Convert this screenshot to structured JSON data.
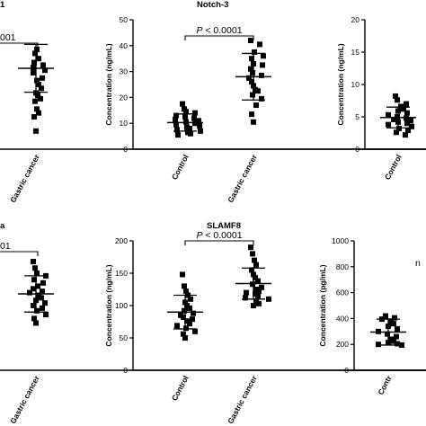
{
  "chart_data": [
    {
      "type": "scatter",
      "title": "",
      "title_prefix": "1",
      "xlabel": "",
      "ylabel": "",
      "categories": [
        "",
        "Gastric cancer"
      ],
      "annotation": "001",
      "ylim": [
        0,
        20
      ],
      "yticks": [],
      "series": [
        {
          "category": "Gastric cancer",
          "mean": 12.5,
          "sd": 3.7,
          "values": [
            12.6,
            14.8,
            15.4,
            14.0,
            13.4,
            13.0,
            12.2,
            11.8,
            11.0,
            10.6,
            10.0,
            9.4,
            8.7,
            8.3,
            7.8,
            7.4,
            6.2,
            5.6,
            5.0,
            2.8
          ]
        }
      ]
    },
    {
      "type": "scatter",
      "title": "Notch-3",
      "xlabel": "",
      "ylabel": "Concentration (ng/mL)",
      "categories": [
        "Control",
        "Gastric cancer"
      ],
      "annotation": "P < 0.0001",
      "ylim": [
        0,
        50
      ],
      "yticks": [
        0,
        10,
        20,
        30,
        40,
        50
      ],
      "series": [
        {
          "category": "Control",
          "mean": 10.3,
          "sd": 3.3,
          "values": [
            17.5,
            15.5,
            14.5,
            14.0,
            13.0,
            12.5,
            12.0,
            11.5,
            11.0,
            10.5,
            10.0,
            9.5,
            9.0,
            8.5,
            8.0,
            7.5,
            7.0,
            6.5,
            6.0,
            5.5
          ]
        },
        {
          "category": "Gastric cancer",
          "mean": 28.0,
          "sd": 9.0,
          "values": [
            42.0,
            40.5,
            37.5,
            36.0,
            35.0,
            33.0,
            32.5,
            31.0,
            29.5,
            28.5,
            27.5,
            26.0,
            24.5,
            23.0,
            22.5,
            21.0,
            19.5,
            17.0,
            13.5,
            10.5
          ]
        }
      ]
    },
    {
      "type": "scatter",
      "title": "",
      "xlabel": "",
      "ylabel": "Concentration (ng/mL)",
      "categories": [
        "Control",
        ""
      ],
      "annotation": "",
      "ylim": [
        0,
        20
      ],
      "yticks": [
        0,
        5,
        10,
        15,
        20
      ],
      "series": [
        {
          "category": "Control",
          "mean": 4.9,
          "sd": 1.6,
          "values": [
            8.2,
            7.6,
            7.0,
            6.6,
            6.2,
            5.9,
            5.6,
            5.3,
            5.0,
            4.8,
            4.6,
            4.4,
            4.2,
            4.0,
            3.8,
            3.5,
            3.2,
            2.9,
            2.6,
            2.2
          ]
        }
      ]
    },
    {
      "type": "scatter",
      "title": "",
      "title_prefix": "a",
      "xlabel": "",
      "ylabel": "",
      "categories": [
        "",
        "Gastric cancer"
      ],
      "annotation": "01",
      "ylim": [
        0,
        200
      ],
      "yticks": [],
      "series": [
        {
          "category": "Gastric cancer",
          "mean": 118,
          "sd": 28,
          "values": [
            168,
            158,
            150,
            146,
            140,
            135,
            130,
            126,
            122,
            120,
            116,
            112,
            108,
            104,
            100,
            96,
            92,
            86,
            80,
            73
          ]
        }
      ]
    },
    {
      "type": "scatter",
      "title": "SLAMF8",
      "xlabel": "",
      "ylabel": "Concentration (ng/mL)",
      "categories": [
        "Control",
        "Gastric cancer"
      ],
      "annotation": "P < 0.0001",
      "ylim": [
        0,
        200
      ],
      "yticks": [
        0,
        50,
        100,
        150,
        200
      ],
      "series": [
        {
          "category": "Control",
          "mean": 90,
          "sd": 26,
          "values": [
            148,
            130,
            122,
            116,
            110,
            105,
            100,
            96,
            92,
            88,
            85,
            82,
            79,
            76,
            72,
            69,
            65,
            60,
            56,
            50
          ]
        },
        {
          "category": "Gastric cancer",
          "mean": 134,
          "sd": 24,
          "values": [
            190,
            180,
            170,
            163,
            155,
            148,
            143,
            138,
            133,
            128,
            125,
            122,
            120,
            118,
            115,
            112,
            110,
            106,
            103,
            100
          ]
        }
      ]
    },
    {
      "type": "scatter",
      "title": "",
      "xlabel": "",
      "ylabel": "Concentration (pg/mL)",
      "categories": [
        "Contr",
        ""
      ],
      "annotation": "",
      "ylim": [
        0,
        1000
      ],
      "yticks": [
        0,
        200,
        400,
        600,
        800,
        1000
      ],
      "series": [
        {
          "category": "Contr",
          "mean": 295,
          "sd": 100,
          "values": [
            420,
            405,
            395,
            380,
            360,
            340,
            320,
            300,
            280,
            260,
            240,
            225,
            215,
            205,
            200,
            195
          ]
        }
      ]
    }
  ]
}
